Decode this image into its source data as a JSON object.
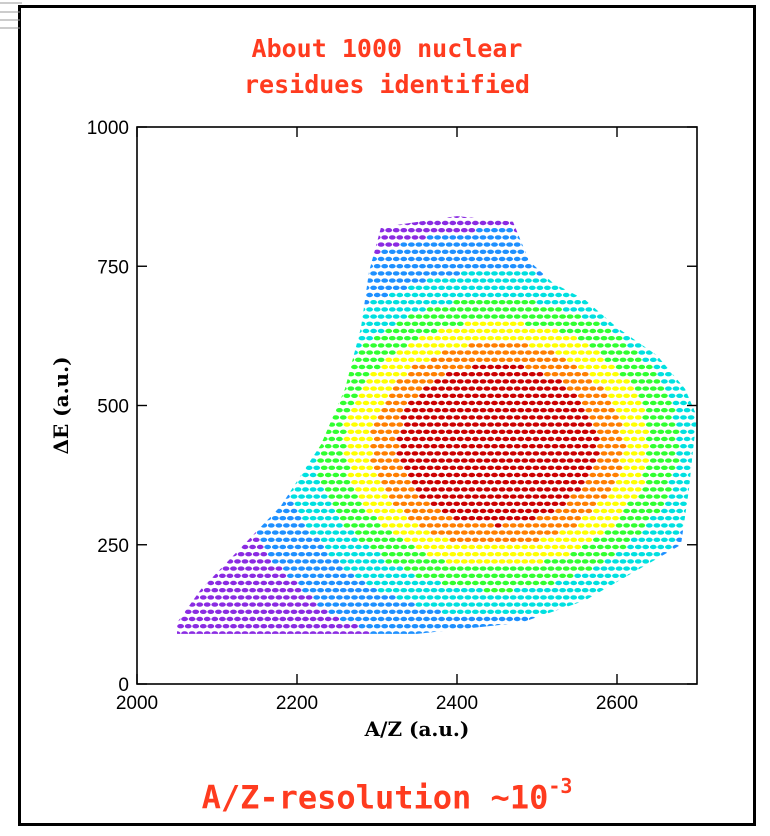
{
  "annotation_top": {
    "line1": "About 1000 nuclear",
    "line2": "residues identified"
  },
  "annotation_bottom": {
    "text": "A/Z-resolution ~10",
    "exponent": "-3"
  },
  "colors": {
    "annotation": "#ff3b1f",
    "frame": "#000000",
    "colormap": [
      "#8a2be2",
      "#1e90ff",
      "#00e0e0",
      "#30ff30",
      "#ffff00",
      "#ff7f00",
      "#cc0000"
    ]
  },
  "chart_data": {
    "type": "heatmap",
    "xlabel": "A/Z (a.u.)",
    "ylabel": "ΔE (a.u.)",
    "xlim": [
      2000,
      2700
    ],
    "ylim": [
      0,
      1000
    ],
    "xticks": [
      2000,
      2200,
      2400,
      2600
    ],
    "yticks": [
      0,
      250,
      500,
      750,
      1000
    ],
    "x_tick_labels": [
      "2000",
      "2200",
      "2400",
      "2600"
    ],
    "y_tick_labels": [
      "0",
      "250",
      "500",
      "750",
      "1000"
    ],
    "grid": false,
    "region_outline": [
      [
        2050,
        110
      ],
      [
        2080,
        170
      ],
      [
        2100,
        200
      ],
      [
        2140,
        260
      ],
      [
        2180,
        320
      ],
      [
        2230,
        430
      ],
      [
        2260,
        530
      ],
      [
        2280,
        640
      ],
      [
        2290,
        740
      ],
      [
        2305,
        820
      ],
      [
        2400,
        840
      ],
      [
        2470,
        830
      ],
      [
        2490,
        760
      ],
      [
        2520,
        720
      ],
      [
        2560,
        690
      ],
      [
        2600,
        640
      ],
      [
        2650,
        590
      ],
      [
        2685,
        530
      ],
      [
        2700,
        480
      ],
      [
        2695,
        420
      ],
      [
        2690,
        350
      ],
      [
        2680,
        250
      ],
      [
        2620,
        200
      ],
      [
        2560,
        150
      ],
      [
        2480,
        110
      ],
      [
        2350,
        90
      ],
      [
        2200,
        90
      ],
      [
        2050,
        90
      ]
    ],
    "peak_intensity_center": [
      2450,
      430
    ]
  }
}
